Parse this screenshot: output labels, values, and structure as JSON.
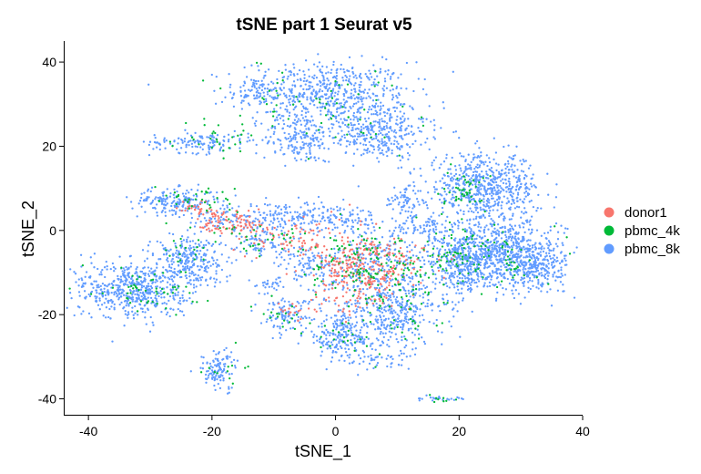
{
  "chart_data": {
    "type": "scatter",
    "title": "tSNE part 1 Seurat v5",
    "xlabel": "tSNE_1",
    "ylabel": "tSNE_2",
    "xlim": [
      -44,
      40
    ],
    "ylim": [
      -44,
      45
    ],
    "xticks": [
      -40,
      -20,
      0,
      20,
      40
    ],
    "yticks": [
      -40,
      -20,
      0,
      20,
      40
    ],
    "grid": false,
    "legend_position": "right",
    "series": [
      {
        "name": "donor1",
        "color": "#F8766D",
        "clusters": [
          {
            "x": -17,
            "y": 2,
            "sx": 2.5,
            "sy": 1.8,
            "n": 80
          },
          {
            "x": -22,
            "y": 5,
            "sx": 1.8,
            "sy": 1.2,
            "n": 30
          },
          {
            "x": -11,
            "y": -1,
            "sx": 2.5,
            "sy": 2,
            "n": 35
          },
          {
            "x": -5,
            "y": -2,
            "sx": 2.5,
            "sy": 2.5,
            "n": 40
          },
          {
            "x": 4,
            "y": -9,
            "sx": 4,
            "sy": 4,
            "n": 260
          },
          {
            "x": 11,
            "y": -6,
            "sx": 2.5,
            "sy": 2.5,
            "n": 45
          },
          {
            "x": 2,
            "y": -16,
            "sx": 3,
            "sy": 2,
            "n": 40
          },
          {
            "x": -7,
            "y": -19,
            "sx": 1.5,
            "sy": 1.5,
            "n": 15
          }
        ]
      },
      {
        "name": "pbmc_4k",
        "color": "#00BA38",
        "clusters": [
          {
            "x": -3,
            "y": 30,
            "sx": 8,
            "sy": 5,
            "n": 70
          },
          {
            "x": -20,
            "y": 21,
            "sx": 4,
            "sy": 1.5,
            "n": 25
          },
          {
            "x": -22,
            "y": 7,
            "sx": 3.5,
            "sy": 1.5,
            "n": 35
          },
          {
            "x": -11,
            "y": -2,
            "sx": 4,
            "sy": 2,
            "n": 35
          },
          {
            "x": 5,
            "y": -8,
            "sx": 5,
            "sy": 4,
            "n": 130
          },
          {
            "x": 10,
            "y": -17,
            "sx": 4,
            "sy": 5,
            "n": 70
          },
          {
            "x": 21,
            "y": 9,
            "sx": 2,
            "sy": 2,
            "n": 45
          },
          {
            "x": 25,
            "y": -6,
            "sx": 4,
            "sy": 4,
            "n": 70
          },
          {
            "x": 19,
            "y": -4,
            "sx": 2,
            "sy": 3,
            "n": 35
          },
          {
            "x": -30,
            "y": -14,
            "sx": 4,
            "sy": 3,
            "n": 50
          },
          {
            "x": -24,
            "y": -5,
            "sx": 2.5,
            "sy": 3,
            "n": 25
          },
          {
            "x": -8,
            "y": -20,
            "sx": 2,
            "sy": 2,
            "n": 18
          },
          {
            "x": 1,
            "y": -26,
            "sx": 2,
            "sy": 2,
            "n": 18
          },
          {
            "x": -18,
            "y": -33,
            "sx": 2,
            "sy": 2,
            "n": 12
          },
          {
            "x": 17,
            "y": -40,
            "sx": 1.5,
            "sy": 0.5,
            "n": 8
          }
        ]
      },
      {
        "name": "pbmc_8k",
        "color": "#619CFF",
        "clusters": [
          {
            "x": -2,
            "y": 33,
            "sx": 7,
            "sy": 3.5,
            "n": 550
          },
          {
            "x": 6,
            "y": 24,
            "sx": 4.5,
            "sy": 3.5,
            "n": 350
          },
          {
            "x": -6,
            "y": 22,
            "sx": 3,
            "sy": 3,
            "n": 180
          },
          {
            "x": -13,
            "y": 33,
            "sx": 1.5,
            "sy": 1.5,
            "n": 40
          },
          {
            "x": -22,
            "y": 21,
            "sx": 4,
            "sy": 1.3,
            "n": 130
          },
          {
            "x": 9,
            "y": 20,
            "sx": 1.5,
            "sy": 1,
            "n": 30
          },
          {
            "x": -26,
            "y": 7,
            "sx": 3.5,
            "sy": 1.5,
            "n": 180
          },
          {
            "x": -18,
            "y": 3,
            "sx": 3,
            "sy": 2,
            "n": 80
          },
          {
            "x": -8,
            "y": 3,
            "sx": 3.5,
            "sy": 2,
            "n": 140
          },
          {
            "x": -12,
            "y": -3,
            "sx": 3,
            "sy": 2,
            "n": 80
          },
          {
            "x": 1,
            "y": 3,
            "sx": 3,
            "sy": 1.5,
            "n": 90
          },
          {
            "x": 6,
            "y": -9,
            "sx": 5,
            "sy": 5,
            "n": 350
          },
          {
            "x": 11,
            "y": 7,
            "sx": 1.5,
            "sy": 2,
            "n": 60
          },
          {
            "x": 14,
            "y": 1,
            "sx": 2.5,
            "sy": 1.5,
            "n": 80
          },
          {
            "x": 10,
            "y": -20,
            "sx": 4,
            "sy": 4,
            "n": 300
          },
          {
            "x": 1,
            "y": -25,
            "sx": 3,
            "sy": 3,
            "n": 220
          },
          {
            "x": 24,
            "y": 10,
            "sx": 4.5,
            "sy": 4,
            "n": 650
          },
          {
            "x": 27,
            "y": -6,
            "sx": 5,
            "sy": 4,
            "n": 850
          },
          {
            "x": 33,
            "y": -9,
            "sx": 2,
            "sy": 2,
            "n": 120
          },
          {
            "x": 20,
            "y": -8,
            "sx": 2.5,
            "sy": 4,
            "n": 220
          },
          {
            "x": -33,
            "y": -14,
            "sx": 4.5,
            "sy": 3.5,
            "n": 550
          },
          {
            "x": -24,
            "y": -7,
            "sx": 3,
            "sy": 3,
            "n": 260
          },
          {
            "x": -8,
            "y": -20,
            "sx": 2,
            "sy": 2,
            "n": 100
          },
          {
            "x": -19,
            "y": -33,
            "sx": 1.5,
            "sy": 2.5,
            "n": 110
          },
          {
            "x": -5,
            "y": -8,
            "sx": 2,
            "sy": 2,
            "n": 70
          },
          {
            "x": -11,
            "y": -13,
            "sx": 1.5,
            "sy": 1,
            "n": 30
          },
          {
            "x": 17,
            "y": -40,
            "sx": 2,
            "sy": 0.5,
            "n": 22
          },
          {
            "x": 7,
            "y": -31,
            "sx": 2.5,
            "sy": 1,
            "n": 40
          }
        ]
      }
    ]
  }
}
